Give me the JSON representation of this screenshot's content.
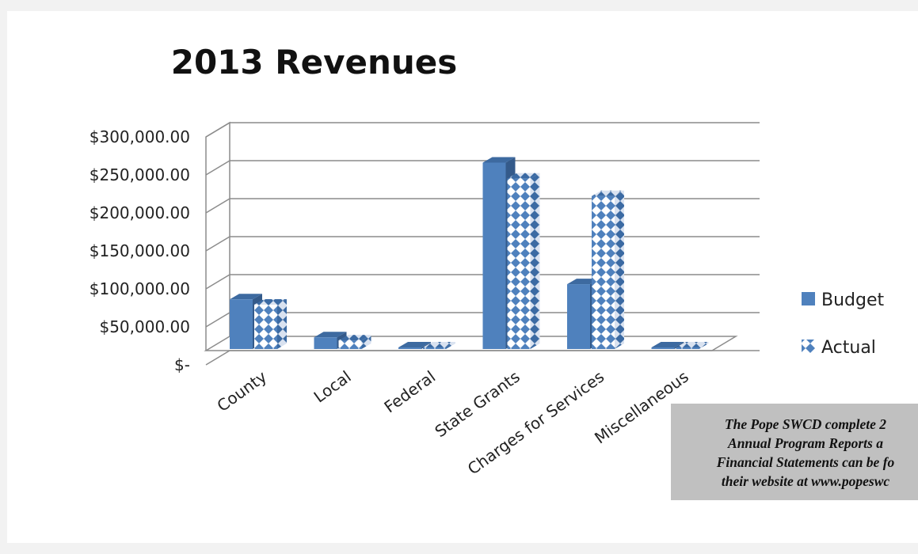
{
  "chart_data": {
    "type": "bar",
    "title": "2013 Revenues",
    "categories": [
      "County",
      "Local",
      "Federal",
      "State Grants",
      "Charges for Services",
      "Miscellaneous"
    ],
    "series": [
      {
        "name": "Budget",
        "values": [
          82000,
          32000,
          0,
          262000,
          102000,
          5000
        ]
      },
      {
        "name": "Actual",
        "values": [
          75000,
          28000,
          0,
          241000,
          218000,
          5000
        ]
      }
    ],
    "ylim": [
      0,
      300000
    ],
    "y_ticks": [
      {
        "value": 0,
        "label": "$-"
      },
      {
        "value": 50000,
        "label": "$50,000.00"
      },
      {
        "value": 100000,
        "label": "$100,000.00"
      },
      {
        "value": 150000,
        "label": "$150,000.00"
      },
      {
        "value": 200000,
        "label": "$200,000.00"
      },
      {
        "value": 250000,
        "label": "$250,000.00"
      },
      {
        "value": 300000,
        "label": "$300,000.00"
      }
    ],
    "grid": true,
    "legend": "right",
    "style": "3d clustered column",
    "colors": {
      "budget": "#4f81bd",
      "actual_pattern": "#4f81bd",
      "actual_background": "#ffffff"
    }
  },
  "note": {
    "lines": [
      "The Pope SWCD complete 2",
      "Annual Program Reports a",
      "Financial Statements can be fo",
      "their website  at www.popeswc"
    ]
  }
}
